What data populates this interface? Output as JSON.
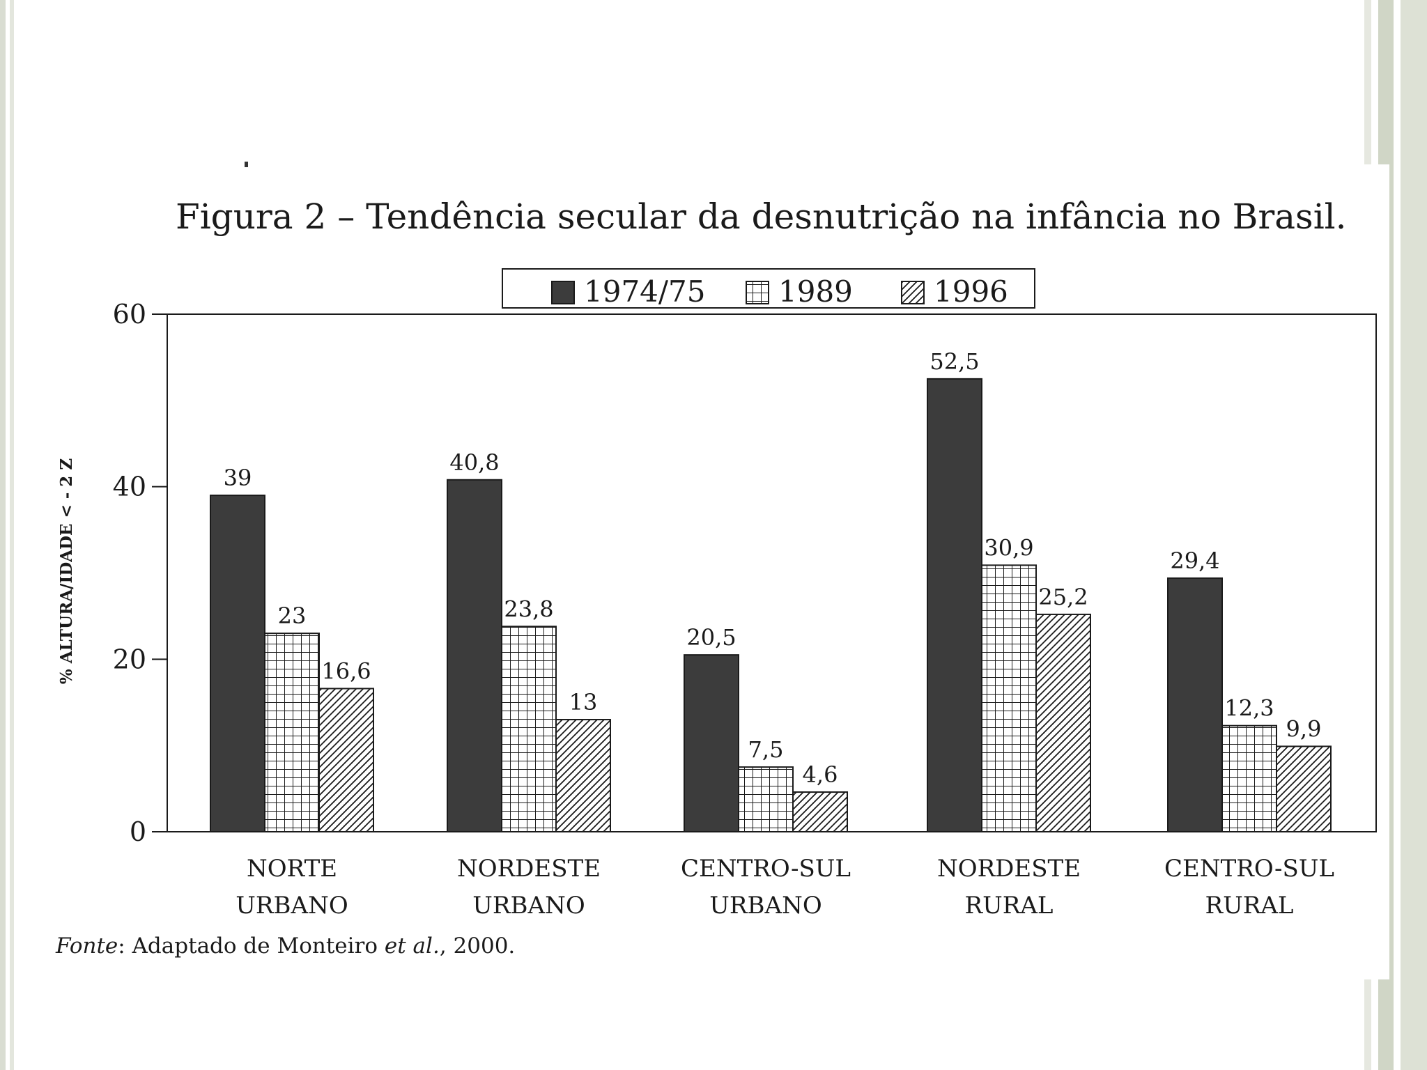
{
  "chart_data": {
    "type": "bar",
    "title": "Figura 2 – Tendência secular da desnutrição na infância no Brasil.",
    "ylabel": "% ALTURA/IDADE < - 2 Z",
    "xlabel": "",
    "ylim": [
      0,
      60
    ],
    "yticks": [
      "0",
      "20",
      "40",
      "60"
    ],
    "ytick_values": [
      0,
      20,
      40,
      60
    ],
    "categories": [
      [
        "NORTE",
        "URBANO"
      ],
      [
        "NORDESTE",
        "URBANO"
      ],
      [
        "CENTRO-SUL",
        "URBANO"
      ],
      [
        "NORDESTE",
        "RURAL"
      ],
      [
        "CENTRO-SUL",
        "RURAL"
      ]
    ],
    "series": [
      {
        "name": "1974/75",
        "pattern": "solid",
        "values": [
          39,
          40.8,
          20.5,
          52.5,
          29.4
        ],
        "labels": [
          "39",
          "40,8",
          "20,5",
          "52,5",
          "29,4"
        ]
      },
      {
        "name": "1989",
        "pattern": "grid",
        "values": [
          23,
          23.8,
          7.5,
          30.9,
          12.3
        ],
        "labels": [
          "23",
          "23,8",
          "7,5",
          "30,9",
          "12,3"
        ]
      },
      {
        "name": "1996",
        "pattern": "hatch",
        "values": [
          16.6,
          13,
          4.6,
          25.2,
          9.9
        ],
        "labels": [
          "16,6",
          "13",
          "4,6",
          "25,2",
          "9,9"
        ]
      }
    ],
    "legend_position": "top-center",
    "grid": false,
    "colors": {
      "solid": "#3c3c3c",
      "ink": "#1a1a1a"
    }
  },
  "source_note": {
    "prefix": "Fonte",
    "text": ": Adaptado de Monteiro ",
    "etal": "et al.",
    "suffix": ", 2000."
  }
}
